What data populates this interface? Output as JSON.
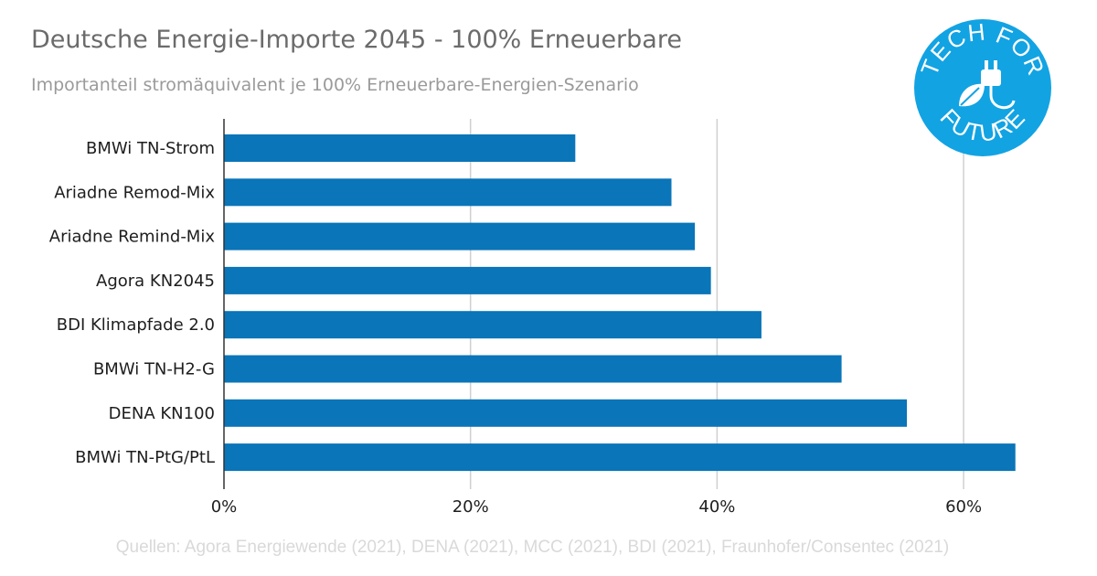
{
  "title": "Deutsche Energie-Importe 2045 - 100% Erneuerbare",
  "subtitle": "Importanteil stromäquivalent je 100% Erneuerbare-Energien-Szenario",
  "source": "Quellen: Agora Energiewende (2021), DENA (2021), MCC (2021), BDI (2021), Fraunhofer/Consentec (2021)",
  "logo": {
    "top_text": "TECH FOR",
    "bottom_text": "FUTURE",
    "icon": "plug-leaf-icon",
    "color": "#12a3e3"
  },
  "colors": {
    "bar": "#0a75b8",
    "grid": "#d0d0d0",
    "axis": "#333333"
  },
  "chart_data": {
    "type": "bar",
    "orientation": "horizontal",
    "categories": [
      "BMWi TN-Strom",
      "Ariadne Remod-Mix",
      "Ariadne Remind-Mix",
      "Agora KN2045",
      "BDI Klimapfade 2.0",
      "BMWi TN-H2-G",
      "DENA KN100",
      "BMWi TN-PtG/PtL"
    ],
    "values": [
      28.5,
      36.3,
      38.2,
      39.5,
      43.6,
      50.1,
      55.4,
      64.2
    ],
    "xlim": [
      0,
      66
    ],
    "xticks": [
      0,
      20,
      40,
      60
    ],
    "xtick_labels": [
      "0%",
      "20%",
      "40%",
      "60%"
    ],
    "grid": true
  }
}
